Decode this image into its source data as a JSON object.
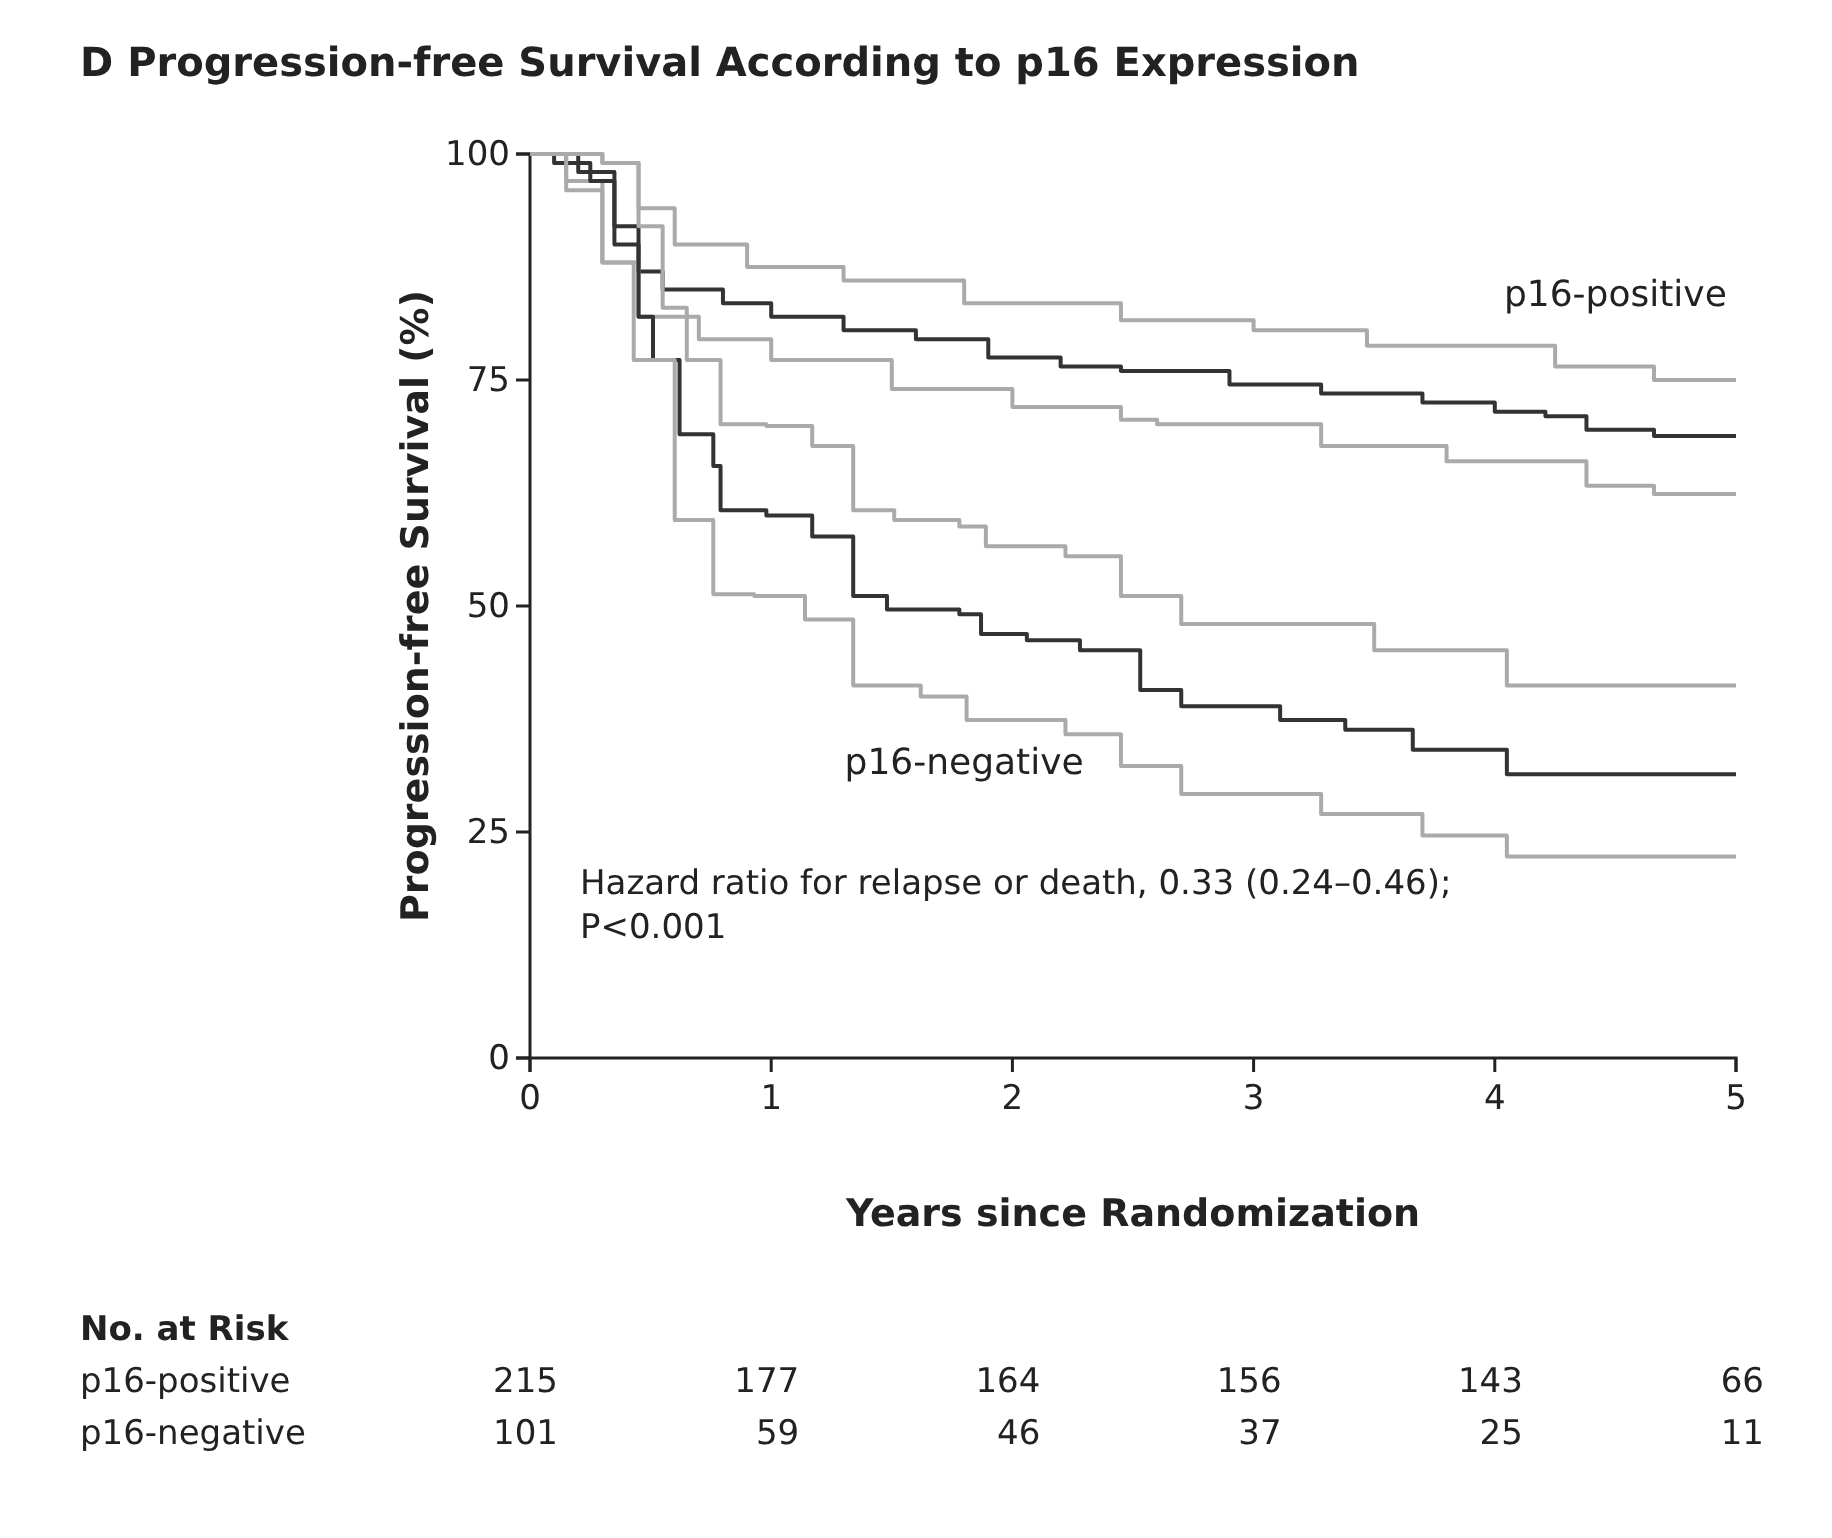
{
  "chart_data": {
    "type": "step",
    "title": "D  Progression-free Survival According to p16 Expression",
    "xlabel": "Years since Randomization",
    "ylabel": "Progression-free Survival (%)",
    "xlim": [
      0,
      5
    ],
    "xticks": [
      0,
      1,
      2,
      3,
      4,
      5
    ],
    "ylim": [
      0,
      100
    ],
    "yticks": [
      0,
      25,
      50,
      75,
      100
    ],
    "grid": false,
    "series": [
      {
        "color": "#aaaaaa",
        "x": [
          0,
          0.3,
          0.45,
          0.6,
          0.9,
          1.3,
          1.8,
          2.45,
          3.0,
          3.47,
          4.25,
          4.66,
          5
        ],
        "values": [
          100,
          99,
          94,
          90,
          87.5,
          86,
          83.5,
          81.6,
          80.5,
          78.8,
          76.5,
          75,
          75
        ]
      },
      {
        "name": "p16-positive",
        "color": "#333333",
        "x": [
          0,
          0.2,
          0.35,
          0.45,
          0.55,
          0.8,
          1.0,
          1.3,
          1.6,
          1.9,
          2.2,
          2.45,
          2.9,
          3.28,
          3.7,
          4.0,
          4.21,
          4.38,
          4.66,
          5
        ],
        "values": [
          100,
          98,
          92,
          87,
          85,
          83.5,
          82,
          80.5,
          79.5,
          77.5,
          76.5,
          76,
          74.5,
          73.5,
          72.5,
          71.5,
          71,
          69.5,
          68.8,
          68.8
        ]
      },
      {
        "color": "#aaaaaa",
        "x": [
          0,
          0.15,
          0.3,
          0.45,
          0.7,
          1.0,
          1.5,
          2.0,
          2.45,
          2.6,
          3.28,
          3.8,
          4.38,
          4.66,
          5
        ],
        "values": [
          100,
          97,
          88,
          82,
          79.5,
          77.2,
          74,
          72,
          70.6,
          70.1,
          67.7,
          66,
          63.3,
          62.4,
          62.4
        ]
      },
      {
        "color": "#aaaaaa",
        "x": [
          0,
          0.3,
          0.45,
          0.55,
          0.65,
          0.79,
          0.98,
          1.17,
          1.34,
          1.51,
          1.78,
          1.89,
          2.22,
          2.45,
          2.7,
          3.5,
          4.05,
          5
        ],
        "values": [
          100,
          99,
          92,
          83,
          77.2,
          70.1,
          69.9,
          67.7,
          60.6,
          59.5,
          58.8,
          56.6,
          55.5,
          51.1,
          48,
          45.1,
          41.2,
          41.2
        ]
      },
      {
        "name": "p16-negative",
        "color": "#333333",
        "x": [
          0,
          0.1,
          0.25,
          0.35,
          0.45,
          0.51,
          0.62,
          0.76,
          0.79,
          0.98,
          1.17,
          1.34,
          1.48,
          1.78,
          1.87,
          2.06,
          2.28,
          2.53,
          2.7,
          3.11,
          3.38,
          3.66,
          4.05,
          5
        ],
        "values": [
          100,
          99,
          97,
          90,
          82,
          77.2,
          69,
          65.5,
          60.6,
          60,
          57.7,
          51.1,
          49.6,
          49.1,
          46.9,
          46.2,
          45.1,
          40.7,
          38.9,
          37.4,
          36.3,
          34.1,
          31.4,
          31.4
        ]
      },
      {
        "color": "#aaaaaa",
        "x": [
          0,
          0.15,
          0.3,
          0.43,
          0.6,
          0.76,
          0.93,
          1.14,
          1.34,
          1.62,
          1.81,
          2.22,
          2.45,
          2.7,
          3.28,
          3.7,
          4.05,
          5
        ],
        "values": [
          100,
          96,
          88,
          77.2,
          59.5,
          51.3,
          51.1,
          48.5,
          41.2,
          40,
          37.4,
          35.8,
          32.3,
          29.2,
          27,
          24.6,
          22.3,
          22.3
        ]
      }
    ],
    "annotations": [
      "Hazard ratio for relapse or death, 0.33 (0.24–0.46);\nP<0.001",
      "No. at Risk",
      "p16-positive",
      "215",
      "177",
      "164",
      "156",
      "143",
      "66",
      "p16-negative",
      "101",
      "59",
      "46",
      "37",
      "25",
      "11"
    ]
  }
}
